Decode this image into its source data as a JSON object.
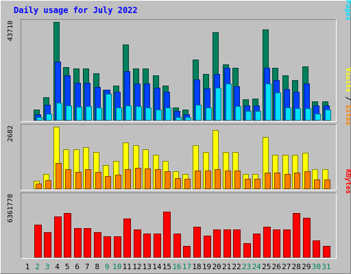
{
  "title": "Daily usage for July 2022",
  "colors": {
    "background": "#c0c0c0",
    "plot_background": "#c0c0c0",
    "title_text": "#0000ff",
    "axis_text": "#000000",
    "weekend_day": "#00805c",
    "weekday_day": "#000000"
  },
  "chart_data": [
    {
      "type": "bar",
      "panel": "hits_files_pages",
      "categories": [
        "1",
        "2",
        "3",
        "4",
        "5",
        "6",
        "7",
        "8",
        "9",
        "10",
        "11",
        "12",
        "13",
        "14",
        "15",
        "16",
        "17",
        "18",
        "19",
        "20",
        "21",
        "22",
        "23",
        "24",
        "25",
        "26",
        "27",
        "28",
        "29",
        "30",
        "31"
      ],
      "weekend_days": [
        "2",
        "3",
        "9",
        "10",
        "16",
        "17",
        "23",
        "24",
        "30",
        "31"
      ],
      "y_max_label": "43710",
      "ylim": [
        0,
        43710
      ],
      "right_label_parts": [
        {
          "text": "Hits",
          "color": "#00805c"
        },
        {
          "text": " / ",
          "color": "#000000"
        },
        {
          "text": "Files",
          "color": "#0040ff"
        },
        {
          "text": " / ",
          "color": "#000000"
        },
        {
          "text": "Pages",
          "color": "#00e0ff"
        }
      ],
      "series": [
        {
          "name": "Hits",
          "color": "#00805c",
          "values": [
            0,
            4800,
            10300,
            43710,
            23700,
            23100,
            23100,
            20800,
            13600,
            15600,
            33700,
            23100,
            23100,
            20000,
            15600,
            5900,
            4800,
            26900,
            20700,
            39100,
            24900,
            23400,
            9400,
            9600,
            40400,
            23400,
            20000,
            17800,
            24000,
            8500,
            8500
          ]
        },
        {
          "name": "Files",
          "color": "#0040ff",
          "values": [
            0,
            2800,
            7100,
            26100,
            20000,
            16600,
            16600,
            14800,
            13600,
            12700,
            21800,
            16300,
            16300,
            14500,
            12700,
            4400,
            2800,
            18300,
            14300,
            20700,
            23400,
            15300,
            6600,
            6600,
            23400,
            17800,
            13900,
            12800,
            16300,
            6600,
            6600
          ]
        },
        {
          "name": "Pages",
          "color": "#00e0ff",
          "values": [
            0,
            1400,
            2900,
            8000,
            6800,
            6200,
            6500,
            5900,
            11700,
            5900,
            6800,
            6500,
            5900,
            4800,
            5900,
            1400,
            1400,
            7100,
            5900,
            14500,
            16300,
            6500,
            4400,
            4400,
            16300,
            12500,
            5900,
            5600,
            5600,
            2900,
            5000
          ]
        }
      ]
    },
    {
      "type": "bar",
      "panel": "visits_sites",
      "categories": [
        "1",
        "2",
        "3",
        "4",
        "5",
        "6",
        "7",
        "8",
        "9",
        "10",
        "11",
        "12",
        "13",
        "14",
        "15",
        "16",
        "17",
        "18",
        "19",
        "20",
        "21",
        "22",
        "23",
        "24",
        "25",
        "26",
        "27",
        "28",
        "29",
        "30",
        "31"
      ],
      "y_max_label": "2682",
      "ylim": [
        0,
        2682
      ],
      "right_label_parts": [
        {
          "text": "Visits",
          "color": "#ffff00"
        },
        {
          "text": " / ",
          "color": "#000000"
        },
        {
          "text": "Sites",
          "color": "#ff8000"
        }
      ],
      "series": [
        {
          "name": "Visits",
          "color": "#ffff00",
          "values": [
            0,
            360,
            650,
            2682,
            1720,
            1720,
            1790,
            1580,
            1030,
            1220,
            1990,
            1880,
            1720,
            1470,
            1220,
            760,
            650,
            1880,
            1580,
            2540,
            1580,
            1580,
            650,
            650,
            2240,
            1480,
            1480,
            1480,
            1550,
            850,
            850
          ]
        },
        {
          "name": "Sites",
          "color": "#ff8000",
          "values": [
            0,
            240,
            370,
            1110,
            860,
            740,
            850,
            740,
            560,
            610,
            860,
            900,
            890,
            860,
            780,
            470,
            440,
            810,
            810,
            840,
            810,
            810,
            440,
            440,
            700,
            700,
            640,
            710,
            760,
            410,
            410
          ]
        }
      ]
    },
    {
      "type": "bar",
      "panel": "kbytes",
      "categories": [
        "1",
        "2",
        "3",
        "4",
        "5",
        "6",
        "7",
        "8",
        "9",
        "10",
        "11",
        "12",
        "13",
        "14",
        "15",
        "16",
        "17",
        "18",
        "19",
        "20",
        "21",
        "22",
        "23",
        "24",
        "25",
        "26",
        "27",
        "28",
        "29",
        "30",
        "31"
      ],
      "y_max_label": "6361778",
      "ylim": [
        0,
        6361778
      ],
      "right_label_parts": [
        {
          "text": "KBytes",
          "color": "#ff0000"
        }
      ],
      "series": [
        {
          "name": "KBytes",
          "color": "#ff0000",
          "values": [
            0,
            3350000,
            2570000,
            4170000,
            4540000,
            3020000,
            3020000,
            2570000,
            2170000,
            2170000,
            3990000,
            2880000,
            2420000,
            2420000,
            4710000,
            2420000,
            1190000,
            3150000,
            2210000,
            2880000,
            2880000,
            2880000,
            1440000,
            2420000,
            3150000,
            2880000,
            2880000,
            4540000,
            4050000,
            1770000,
            1190000
          ]
        }
      ]
    }
  ]
}
